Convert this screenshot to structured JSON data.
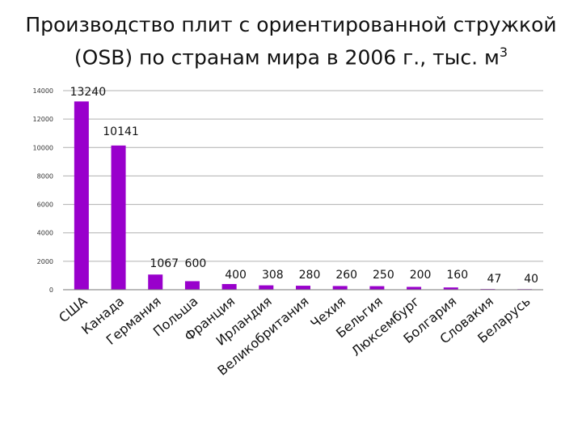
{
  "title_line1": "Производство плит с ориентированной стружкой",
  "title_line2": "(OSB) по странам мира в 2006 г., тыс. м",
  "title_sup": "3",
  "colors": {
    "bar": "#9900cc",
    "grid": "#b0b0b0",
    "axis": "#777777"
  },
  "chart_data": {
    "type": "bar",
    "title": "Производство плит с ориентированной стружкой (OSB) по странам мира в 2006 г., тыс. м3",
    "xlabel": "",
    "ylabel": "",
    "ylim": [
      0,
      14000
    ],
    "yticks": [
      "0",
      "2000",
      "4000",
      "6000",
      "8000",
      "10000",
      "12000",
      "14000"
    ],
    "grid": true,
    "categories": [
      "США",
      "Канада",
      "Германия",
      "Польша",
      "Франция",
      "Ирландия",
      "Великобритания",
      "Чехия",
      "Бельгия",
      "Люксембург",
      "Болгария",
      "Словакия",
      "Беларусь"
    ],
    "values": [
      13240,
      10141,
      1067,
      600,
      400,
      308,
      280,
      260,
      250,
      200,
      160,
      47,
      40
    ],
    "data_labels": [
      "13240",
      "10141",
      "1067",
      "600",
      "400",
      "308",
      "280",
      "260",
      "250",
      "200",
      "160",
      "47",
      "40"
    ]
  }
}
